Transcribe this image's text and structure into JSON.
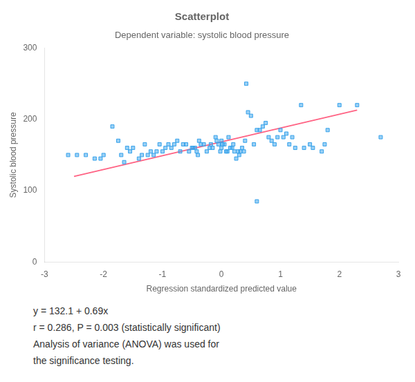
{
  "chart_data": {
    "type": "scatter",
    "title": "Scatterplot",
    "subtitle": "Dependent variable: systolic blood pressure",
    "x_label": "Regression standardized predicted value",
    "y_label": "Systolic blood pressure",
    "xlim": [
      -3,
      3
    ],
    "ylim": [
      0,
      300
    ],
    "xticks": [
      -3,
      -2,
      -1,
      0,
      1,
      2,
      3
    ],
    "yticks": [
      0,
      100,
      200,
      300
    ],
    "grid": false,
    "series": [
      {
        "type": "scatter",
        "marker": "square",
        "x": [
          -2.6,
          -2.45,
          -2.3,
          -2.15,
          -2.05,
          -2.0,
          -1.85,
          -1.75,
          -1.7,
          -1.65,
          -1.6,
          -1.55,
          -1.5,
          -1.4,
          -1.35,
          -1.3,
          -1.25,
          -1.2,
          -1.15,
          -1.1,
          -1.05,
          -1.0,
          -0.95,
          -0.9,
          -0.85,
          -0.8,
          -0.75,
          -0.7,
          -0.65,
          -0.6,
          -0.55,
          -0.5,
          -0.48,
          -0.45,
          -0.42,
          -0.4,
          -0.38,
          -0.35,
          -0.3,
          -0.25,
          -0.2,
          -0.18,
          -0.15,
          -0.1,
          -0.08,
          -0.05,
          -0.02,
          0.0,
          0.0,
          0.02,
          0.05,
          0.08,
          0.1,
          0.12,
          0.15,
          0.18,
          0.2,
          0.22,
          0.25,
          0.28,
          0.3,
          0.32,
          0.35,
          0.38,
          0.4,
          0.42,
          0.45,
          0.5,
          0.55,
          0.6,
          0.65,
          0.7,
          0.75,
          0.8,
          0.85,
          0.9,
          0.95,
          1.0,
          1.05,
          1.1,
          1.15,
          1.2,
          1.25,
          1.35,
          1.4,
          1.5,
          1.55,
          1.7,
          1.75,
          1.8,
          2.0,
          2.3,
          2.7,
          0.6
        ],
        "values": [
          150,
          150,
          150,
          145,
          145,
          150,
          190,
          170,
          150,
          140,
          160,
          155,
          160,
          145,
          150,
          165,
          150,
          155,
          150,
          155,
          165,
          155,
          160,
          165,
          160,
          165,
          170,
          155,
          165,
          165,
          155,
          160,
          160,
          160,
          155,
          150,
          170,
          165,
          165,
          155,
          160,
          165,
          160,
          175,
          170,
          165,
          155,
          160,
          170,
          165,
          165,
          155,
          155,
          175,
          160,
          160,
          165,
          155,
          145,
          155,
          150,
          155,
          160,
          155,
          170,
          250,
          210,
          205,
          165,
          185,
          185,
          190,
          195,
          175,
          170,
          165,
          175,
          185,
          175,
          180,
          165,
          175,
          160,
          220,
          160,
          165,
          160,
          155,
          165,
          185,
          220,
          220,
          175,
          85
        ]
      },
      {
        "type": "line",
        "x": [
          -2.5,
          2.3
        ],
        "values": [
          120,
          213
        ]
      }
    ],
    "annotations": [
      "y = 132.1 + 0.69x",
      "r = 0.286, P = 0.003 (statistically significant)",
      "Analysis of variance (ANOVA) was used for",
      "the significance testing."
    ]
  }
}
